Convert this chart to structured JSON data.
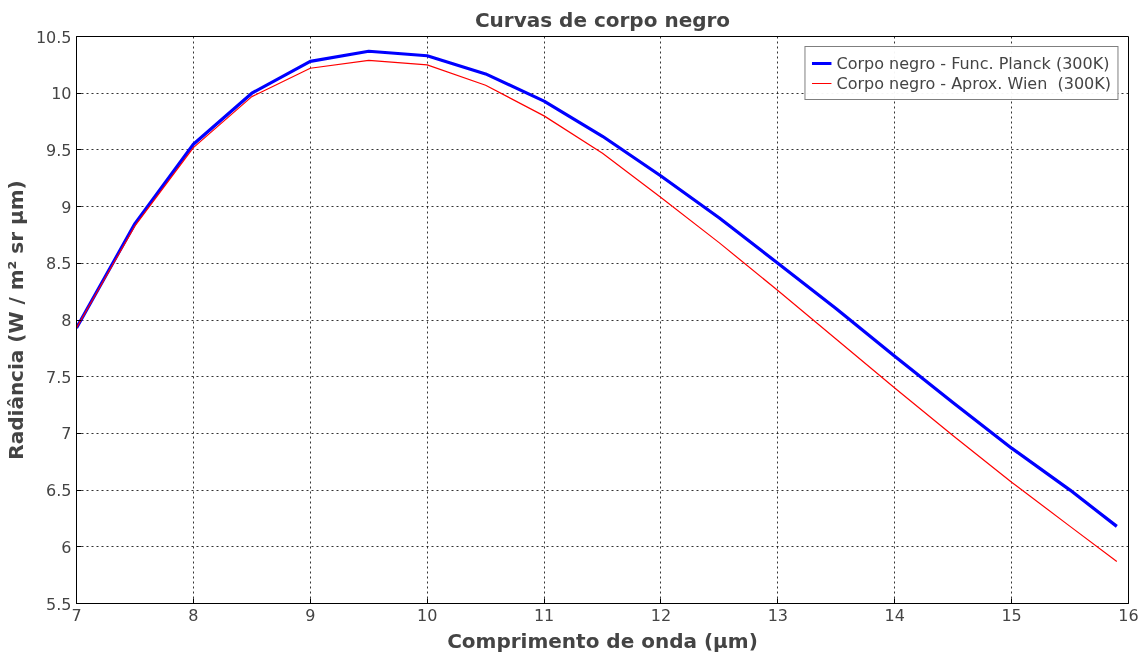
{
  "chart_data": {
    "type": "line",
    "title": "Curvas de corpo negro",
    "xlabel": "Comprimento de onda (μm)",
    "ylabel": "Radiância (W / m² sr μm)",
    "x": [
      7,
      7.5,
      8,
      8.5,
      9,
      9.5,
      10,
      10.5,
      11,
      11.5,
      12,
      12.5,
      13,
      13.5,
      14,
      14.5,
      15,
      15.5,
      15.9
    ],
    "series": [
      {
        "name": "Corpo negro - Func. Planck (300K)",
        "color": "#0000ff",
        "values": [
          7.93,
          8.85,
          9.55,
          10.0,
          10.28,
          10.37,
          10.33,
          10.17,
          9.93,
          9.62,
          9.27,
          8.9,
          8.5,
          8.1,
          7.68,
          7.27,
          6.87,
          6.5,
          6.18
        ]
      },
      {
        "name": "Corpo negro - Aprox. Wien  (300K)",
        "color": "#ff0000",
        "values": [
          7.93,
          8.83,
          9.52,
          9.97,
          10.22,
          10.29,
          10.25,
          10.07,
          9.8,
          9.47,
          9.08,
          8.68,
          8.26,
          7.83,
          7.4,
          6.98,
          6.57,
          6.18,
          5.87
        ]
      }
    ],
    "xlim": [
      7,
      16
    ],
    "ylim": [
      5.5,
      10.5
    ],
    "xticks": [
      7,
      8,
      9,
      10,
      11,
      12,
      13,
      14,
      15,
      16
    ],
    "yticks": [
      5.5,
      6,
      6.5,
      7,
      7.5,
      8,
      8.5,
      9,
      9.5,
      10,
      10.5
    ],
    "grid": true,
    "legend": "top right",
    "marker": "none",
    "line_style": "solid"
  }
}
